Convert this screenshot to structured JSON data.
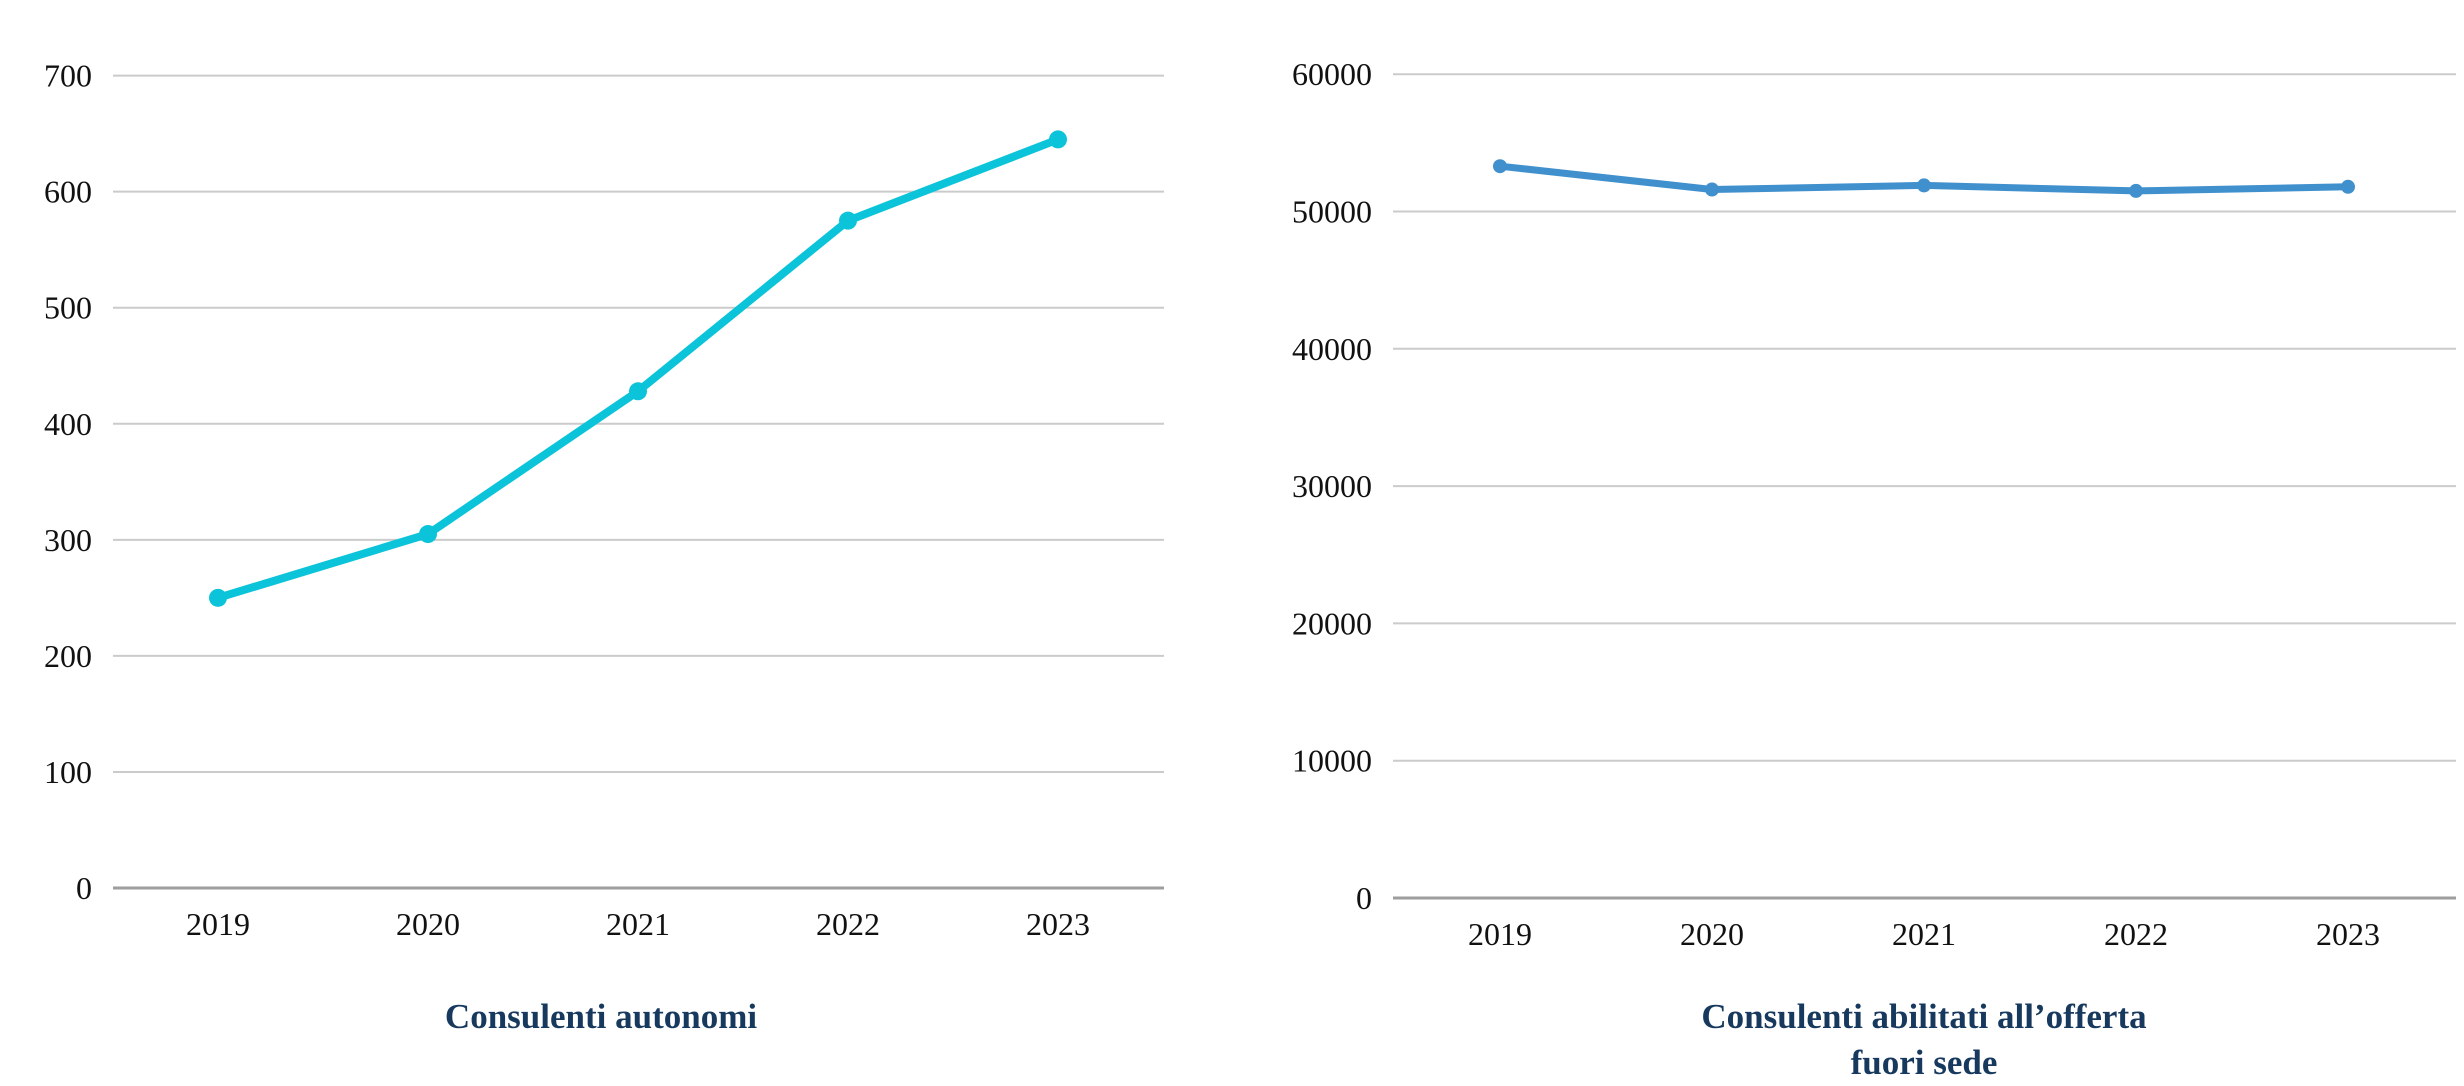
{
  "page": {
    "background_color": "#ffffff"
  },
  "colors": {
    "left_line": "#0bc4d9",
    "right_line": "#4190ce",
    "title_text": "#17395e",
    "tick_text": "#111111",
    "gridline": "#cbcbcb",
    "zero_axis": "#9e9e9e"
  },
  "chart_data": [
    {
      "type": "line",
      "title": "Consulenti autonomi",
      "title_lines": [
        "Consulenti autonomi",
        ""
      ],
      "categories": [
        "2019",
        "2020",
        "2021",
        "2022",
        "2023"
      ],
      "values": [
        250,
        305,
        428,
        575,
        645
      ],
      "ylim": [
        0,
        700
      ],
      "ytick_step": 100,
      "ytick_labels": [
        "0",
        "100",
        "200",
        "300",
        "400",
        "500",
        "600",
        "700"
      ],
      "grid": true,
      "legend_position": "none",
      "line_color": "#0bc4d9",
      "marker": "circle"
    },
    {
      "type": "line",
      "title": "Consulenti abilitati all’offerta fuori sede",
      "title_lines": [
        "Consulenti abilitati all’offerta",
        "fuori sede"
      ],
      "categories": [
        "2019",
        "2020",
        "2021",
        "2022",
        "2023"
      ],
      "values": [
        53300,
        51600,
        51900,
        51500,
        51800
      ],
      "ylim": [
        0,
        60000
      ],
      "ytick_step": 10000,
      "ytick_labels": [
        "0",
        "10000",
        "20000",
        "30000",
        "40000",
        "50000",
        "60000"
      ],
      "grid": true,
      "legend_position": "none",
      "line_color": "#4190ce",
      "marker": "circle"
    }
  ]
}
